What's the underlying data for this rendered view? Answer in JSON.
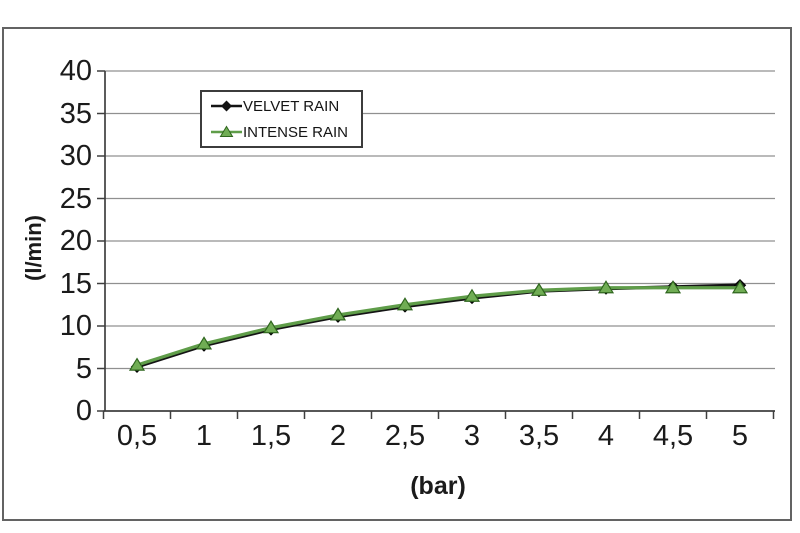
{
  "window": {
    "background": "#ffffff",
    "frame_border_color": "#636363"
  },
  "chart_data": {
    "type": "line",
    "title": "",
    "xlabel": "(bar)",
    "ylabel": "(l/min)",
    "categories": [
      "0,5",
      "1",
      "1,5",
      "2",
      "2,5",
      "3",
      "3,5",
      "4",
      "4,5",
      "5"
    ],
    "categories_numeric": [
      0.5,
      1,
      1.5,
      2,
      2.5,
      3,
      3.5,
      4,
      4.5,
      5
    ],
    "ylim": [
      0,
      40
    ],
    "yticks": [
      0,
      5,
      10,
      15,
      20,
      25,
      30,
      35,
      40
    ],
    "grid": "horizontal",
    "gridline_color": "#909090",
    "axis_color": "#3f3f3f",
    "legend_position": "inside-top",
    "series": [
      {
        "name": "VELVET RAIN",
        "marker": "diamond",
        "color": "#141414",
        "marker_fill": "#141414",
        "marker_stroke": "#000000",
        "values": [
          5.2,
          7.7,
          9.6,
          11.1,
          12.3,
          13.3,
          14.1,
          14.4,
          14.6,
          14.8
        ]
      },
      {
        "name": "INTENSE RAIN",
        "marker": "triangle",
        "color": "#5f9d49",
        "marker_fill": "#70ad54",
        "marker_stroke": "#2f661e",
        "values": [
          5.4,
          7.9,
          9.8,
          11.3,
          12.5,
          13.5,
          14.2,
          14.5,
          14.5,
          14.5
        ]
      }
    ]
  },
  "legend": {
    "icons": [
      "diamond-line-icon",
      "triangle-line-icon"
    ]
  }
}
